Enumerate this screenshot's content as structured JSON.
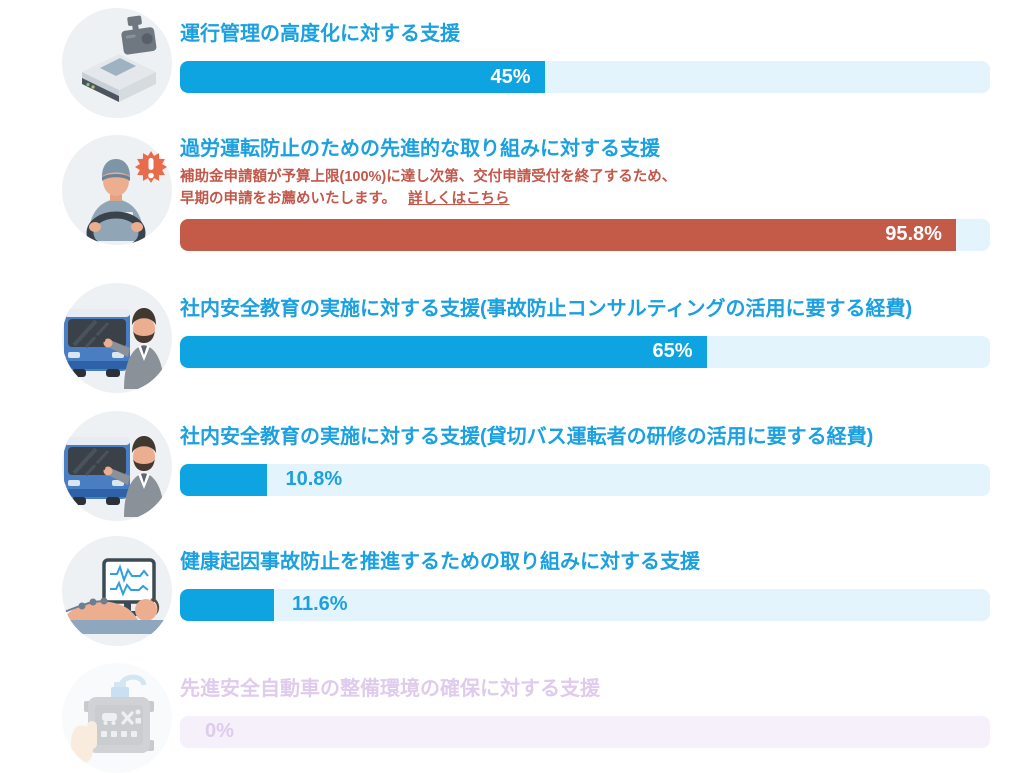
{
  "colors": {
    "title_blue": "#1BA0E0",
    "bar_fill_blue": "#0DA4E1",
    "bar_track_blue": "#E3F4FC",
    "bar_fill_red": "#C45A48",
    "note_red": "#C2574A",
    "disabled_text": "#DFCBEC",
    "disabled_track": "#F5F0FA",
    "icon_circle_bg": "#EDF1F4",
    "alert_orange": "#EA6B4B"
  },
  "rows": [
    {
      "icon": "tachograph-icon",
      "title": "運行管理の高度化に対する支援",
      "percent": 45,
      "percent_label": "45%",
      "bar": "blue",
      "label_position": "inside",
      "state": "active"
    },
    {
      "icon": "driver-warning-icon",
      "title": "過労運転防止のための先進的な取り組みに対する支援",
      "note": {
        "line1": "補助金申請額が予算上限(100%)に達し次第、交付申請受付を終了するため、",
        "line2": "早期の申請をお薦めいたします。",
        "link": "詳しくはこちら"
      },
      "percent": 95.8,
      "percent_label": "95.8%",
      "bar": "red",
      "label_position": "inside",
      "state": "active"
    },
    {
      "icon": "bus-instructor-icon",
      "title": "社内安全教育の実施に対する支援(事故防止コンサルティングの活用に要する経費)",
      "percent": 65,
      "percent_label": "65%",
      "bar": "blue",
      "label_position": "inside",
      "state": "active"
    },
    {
      "icon": "bus-instructor-icon",
      "title": "社内安全教育の実施に対する支援(貸切バス運転者の研修の活用に要する経費)",
      "percent": 10.8,
      "percent_label": "10.8%",
      "bar": "blue",
      "label_position": "outside",
      "state": "active"
    },
    {
      "icon": "health-monitor-icon",
      "title": "健康起因事故防止を推進するための取り組みに対する支援",
      "percent": 11.6,
      "percent_label": "11.6%",
      "bar": "blue",
      "label_position": "outside",
      "state": "active"
    },
    {
      "icon": "diagnostic-tool-icon",
      "title": "先進安全自動車の整備環境の確保に対する支援",
      "percent": 0,
      "percent_label": "0%",
      "bar": "blue",
      "label_position": "outside",
      "state": "disabled"
    }
  ]
}
